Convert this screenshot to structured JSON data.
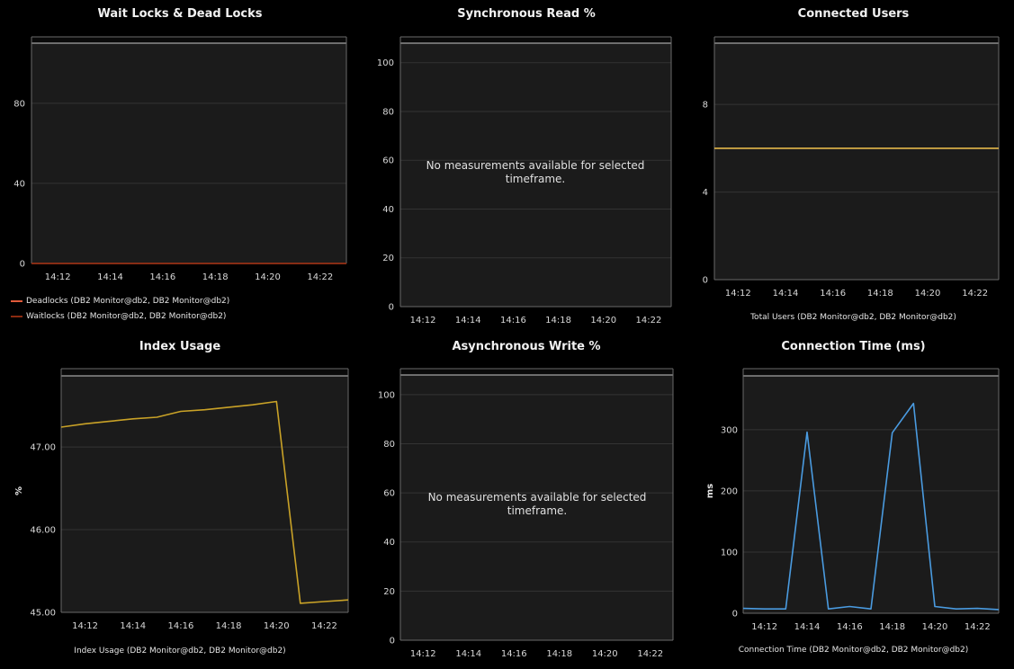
{
  "colors": {
    "background": "#000000",
    "plot_background": "#1b1b1b",
    "grid": "#333333",
    "frame": "#6a6a6a",
    "top_band": "#c8c8c8",
    "tick_text": "#d8d8d8"
  },
  "panels": {
    "wait_locks": {
      "title": "Wait Locks & Dead Locks"
    },
    "sync_read": {
      "title": "Synchronous Read %",
      "no_data": "No measurements available for selected timeframe."
    },
    "connected_users": {
      "title": "Connected Users"
    },
    "index_usage": {
      "title": "Index Usage"
    },
    "async_write": {
      "title": "Asynchronous Write %",
      "no_data": "No measurements available for selected timeframe."
    },
    "connection_time": {
      "title": "Connection Time (ms)"
    }
  },
  "chart_data": [
    {
      "id": "wait_locks",
      "type": "line",
      "title": "Wait Locks & Dead Locks",
      "xlabel": "",
      "ylabel": "",
      "x_ticks": [
        "14:12",
        "14:14",
        "14:16",
        "14:18",
        "14:20",
        "14:22"
      ],
      "y_ticks": [
        0,
        40,
        80
      ],
      "ylim": [
        0,
        110
      ],
      "x": [
        "14:11",
        "14:12",
        "14:13",
        "14:14",
        "14:15",
        "14:16",
        "14:17",
        "14:18",
        "14:19",
        "14:20",
        "14:21",
        "14:22",
        "14:23"
      ],
      "series": [
        {
          "name": "Deadlocks (DB2 Monitor@db2, DB2 Monitor@db2)",
          "color": "#e05a3a",
          "values": [
            0,
            0,
            0,
            0,
            0,
            0,
            0,
            0,
            0,
            0,
            0,
            0,
            0
          ]
        },
        {
          "name": "Waitlocks (DB2 Monitor@db2, DB2 Monitor@db2)",
          "color": "#8b2a10",
          "values": [
            0,
            0,
            0,
            0,
            0,
            0,
            0,
            0,
            0,
            0,
            0,
            0,
            0
          ]
        }
      ],
      "legend": "bottom-left",
      "grid": true
    },
    {
      "id": "sync_read",
      "type": "line",
      "title": "Synchronous Read %",
      "xlabel": "",
      "ylabel": "",
      "x_ticks": [
        "14:12",
        "14:14",
        "14:16",
        "14:18",
        "14:20",
        "14:22"
      ],
      "y_ticks": [
        0,
        20,
        40,
        60,
        80,
        100
      ],
      "ylim": [
        0,
        108
      ],
      "series": [],
      "grid": true
    },
    {
      "id": "connected_users",
      "type": "line",
      "title": "Connected Users",
      "xlabel": "",
      "ylabel": "",
      "x_ticks": [
        "14:12",
        "14:14",
        "14:16",
        "14:18",
        "14:20",
        "14:22"
      ],
      "y_ticks": [
        0,
        4,
        8
      ],
      "ylim": [
        0,
        10.8
      ],
      "x": [
        "14:11",
        "14:12",
        "14:13",
        "14:14",
        "14:15",
        "14:16",
        "14:17",
        "14:18",
        "14:19",
        "14:20",
        "14:21",
        "14:22",
        "14:23"
      ],
      "series": [
        {
          "name": "Total Users (DB2 Monitor@db2, DB2 Monitor@db2)",
          "color": "#e3b84a",
          "values": [
            6,
            6,
            6,
            6,
            6,
            6,
            6,
            6,
            6,
            6,
            6,
            6,
            6
          ]
        }
      ],
      "legend": "bottom-center",
      "grid": true
    },
    {
      "id": "index_usage",
      "type": "line",
      "title": "Index Usage",
      "xlabel": "",
      "ylabel": "%",
      "x_ticks": [
        "14:12",
        "14:14",
        "14:16",
        "14:18",
        "14:20",
        "14:22"
      ],
      "y_ticks": [
        "45.00",
        "46.00",
        "47.00"
      ],
      "ylim": [
        45.0,
        47.86
      ],
      "x": [
        "14:11",
        "14:12",
        "14:13",
        "14:14",
        "14:15",
        "14:16",
        "14:17",
        "14:18",
        "14:19",
        "14:20",
        "14:21",
        "14:22",
        "14:23"
      ],
      "series": [
        {
          "name": "Index Usage (DB2 Monitor@db2, DB2 Monitor@db2)",
          "color": "#c9a227",
          "values": [
            47.24,
            47.28,
            47.31,
            47.34,
            47.36,
            47.43,
            47.45,
            47.48,
            47.51,
            47.55,
            45.11,
            45.13,
            45.15
          ]
        }
      ],
      "legend": "bottom-center",
      "grid": true
    },
    {
      "id": "async_write",
      "type": "line",
      "title": "Asynchronous Write %",
      "xlabel": "",
      "ylabel": "",
      "x_ticks": [
        "14:12",
        "14:14",
        "14:16",
        "14:18",
        "14:20",
        "14:22"
      ],
      "y_ticks": [
        0,
        20,
        40,
        60,
        80,
        100
      ],
      "ylim": [
        0,
        108
      ],
      "series": [],
      "grid": true
    },
    {
      "id": "connection_time",
      "type": "line",
      "title": "Connection Time (ms)",
      "xlabel": "",
      "ylabel": "ms",
      "x_ticks": [
        "14:12",
        "14:14",
        "14:16",
        "14:18",
        "14:20",
        "14:22"
      ],
      "y_ticks": [
        0,
        100,
        200,
        300
      ],
      "ylim": [
        0,
        388
      ],
      "x": [
        "14:11",
        "14:12",
        "14:13",
        "14:14",
        "14:15",
        "14:16",
        "14:17",
        "14:18",
        "14:19",
        "14:20",
        "14:21",
        "14:22",
        "14:23"
      ],
      "series": [
        {
          "name": "Connection Time (DB2 Monitor@db2, DB2 Monitor@db2)",
          "color": "#4a9be0",
          "values": [
            8,
            7,
            7,
            296,
            7,
            11,
            7,
            295,
            343,
            11,
            7,
            8,
            6
          ]
        }
      ],
      "legend": "bottom-center",
      "grid": true
    }
  ]
}
